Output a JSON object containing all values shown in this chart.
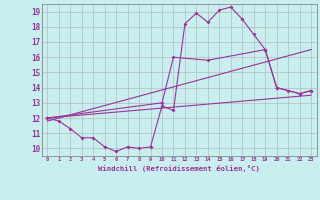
{
  "bg_color": "#c8eef0",
  "grid_color": "#b0b0b0",
  "line_color": "#993399",
  "xlabel": "Windchill (Refroidissement éolien,°C)",
  "ylabel_ticks": [
    10,
    11,
    12,
    13,
    14,
    15,
    16,
    17,
    18,
    19
  ],
  "xlim": [
    -0.5,
    23.5
  ],
  "ylim": [
    9.5,
    19.5
  ],
  "xticks": [
    0,
    1,
    2,
    3,
    4,
    5,
    6,
    7,
    8,
    9,
    10,
    11,
    12,
    13,
    14,
    15,
    16,
    17,
    18,
    19,
    20,
    21,
    22,
    23
  ],
  "line1_x": [
    0,
    1,
    2,
    3,
    4,
    5,
    6,
    7,
    8,
    9,
    10,
    11,
    12,
    13,
    14,
    15,
    16,
    17,
    18,
    19,
    20,
    21,
    22,
    23
  ],
  "line1_y": [
    12.0,
    11.8,
    11.3,
    10.7,
    10.7,
    10.1,
    9.8,
    10.1,
    10.0,
    10.1,
    12.8,
    12.5,
    18.2,
    18.9,
    18.3,
    19.1,
    19.3,
    18.5,
    17.5,
    16.5,
    14.0,
    13.8,
    13.6,
    13.8
  ],
  "line2_x": [
    0,
    23
  ],
  "line2_y": [
    12.0,
    13.5
  ],
  "line3_x": [
    0,
    23
  ],
  "line3_y": [
    11.8,
    16.5
  ],
  "line4_x": [
    0,
    10,
    11,
    14,
    19,
    20,
    22,
    23
  ],
  "line4_y": [
    12.0,
    13.0,
    16.0,
    15.8,
    16.5,
    14.0,
    13.6,
    13.8
  ]
}
